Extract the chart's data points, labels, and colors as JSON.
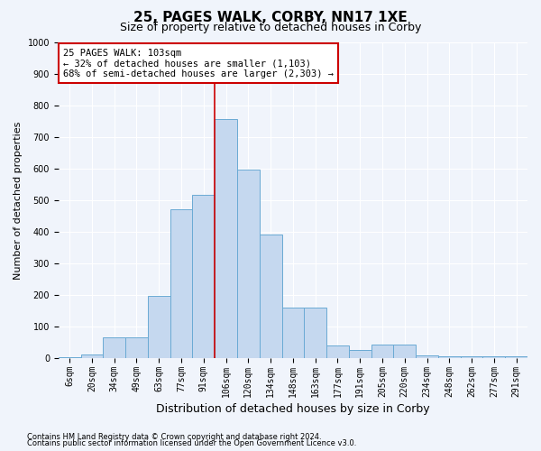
{
  "title": "25, PAGES WALK, CORBY, NN17 1XE",
  "subtitle": "Size of property relative to detached houses in Corby",
  "xlabel": "Distribution of detached houses by size in Corby",
  "ylabel": "Number of detached properties",
  "footnote1": "Contains HM Land Registry data © Crown copyright and database right 2024.",
  "footnote2": "Contains public sector information licensed under the Open Government Licence v3.0.",
  "bar_labels": [
    "6sqm",
    "20sqm",
    "34sqm",
    "49sqm",
    "63sqm",
    "77sqm",
    "91sqm",
    "106sqm",
    "120sqm",
    "134sqm",
    "148sqm",
    "163sqm",
    "177sqm",
    "191sqm",
    "205sqm",
    "220sqm",
    "234sqm",
    "248sqm",
    "262sqm",
    "277sqm",
    "291sqm"
  ],
  "bar_values": [
    2,
    12,
    65,
    65,
    198,
    470,
    518,
    757,
    597,
    390,
    160,
    160,
    40,
    27,
    43,
    43,
    10,
    5,
    5,
    5,
    5
  ],
  "bar_color": "#c5d8ef",
  "bar_edge_color": "#6aaad4",
  "annotation_text": "25 PAGES WALK: 103sqm\n← 32% of detached houses are smaller (1,103)\n68% of semi-detached houses are larger (2,303) →",
  "annotation_box_color": "white",
  "annotation_box_edge_color": "#cc0000",
  "vline_color": "#cc0000",
  "vline_x_index": 7,
  "ylim": [
    0,
    1000
  ],
  "yticks": [
    0,
    100,
    200,
    300,
    400,
    500,
    600,
    700,
    800,
    900,
    1000
  ],
  "bg_color": "#f0f4fb",
  "plot_bg_color": "#f0f4fb",
  "title_fontsize": 11,
  "subtitle_fontsize": 9,
  "ylabel_fontsize": 8,
  "xlabel_fontsize": 9,
  "tick_fontsize": 7,
  "footnote_fontsize": 6
}
